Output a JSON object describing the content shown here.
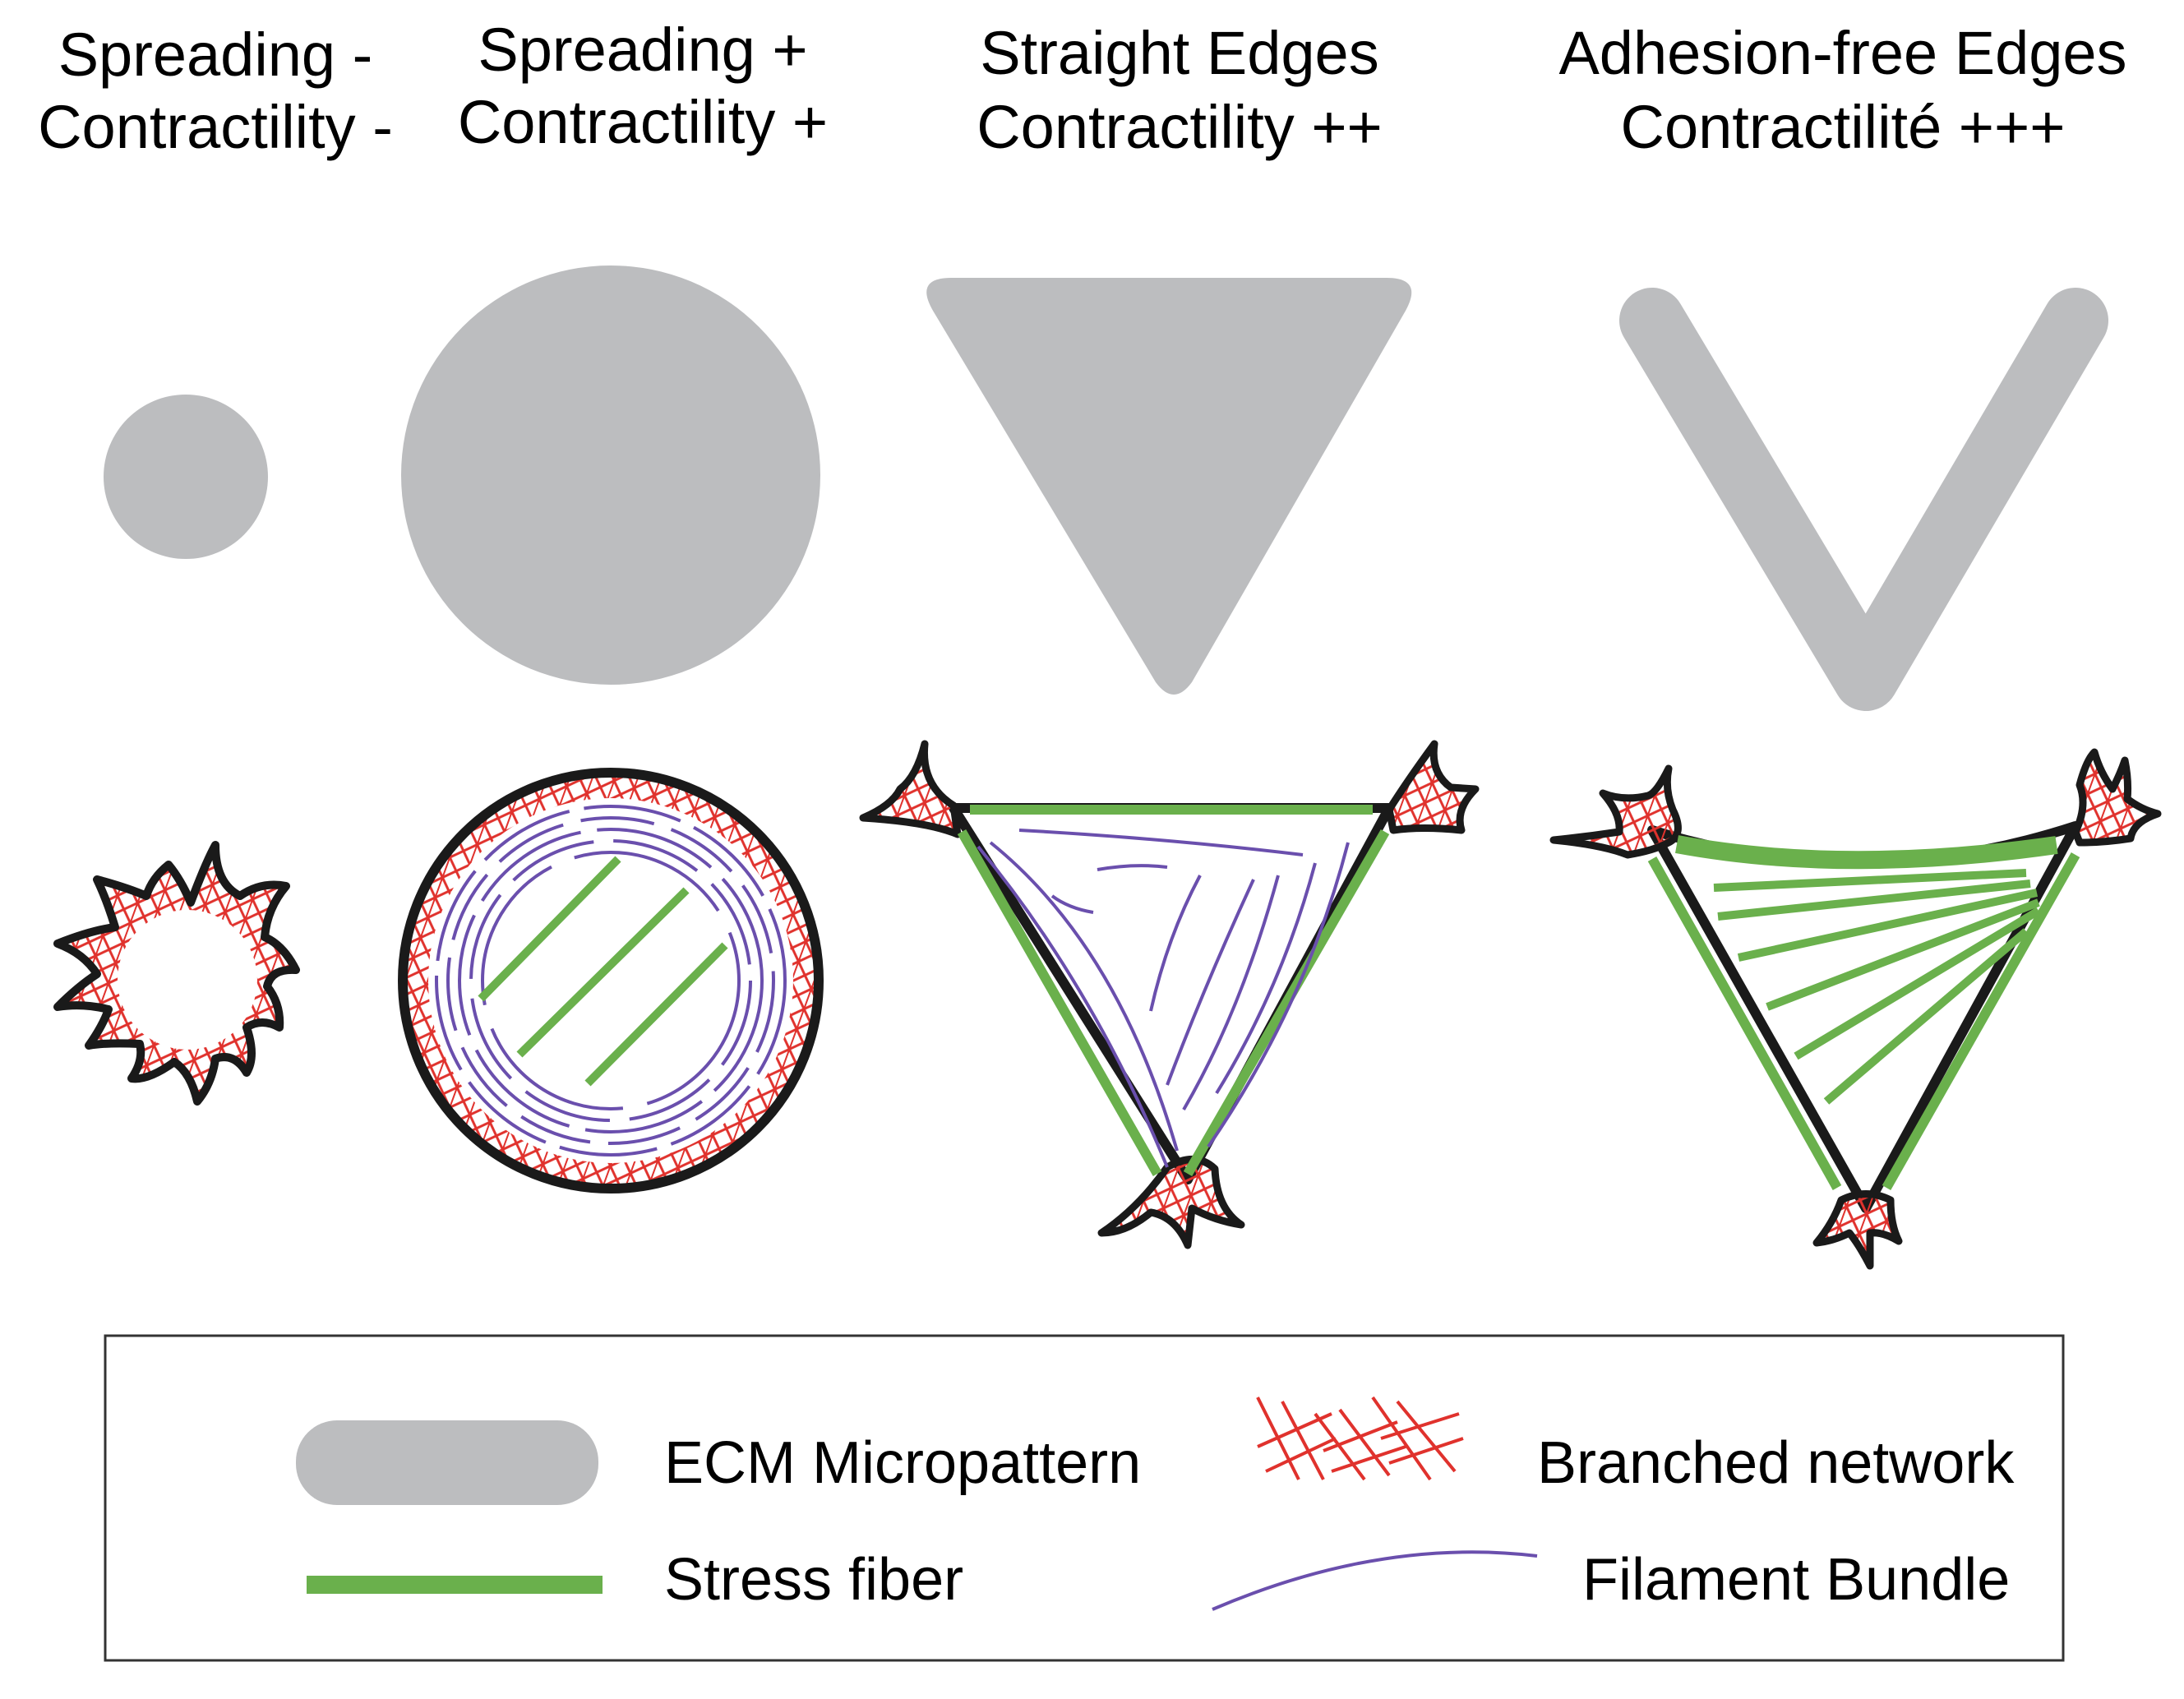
{
  "columns": [
    {
      "line1": "Spreading -",
      "line2": "Contractility -"
    },
    {
      "line1": "Spreading +",
      "line2": "Contractility +"
    },
    {
      "line1": "Straight Edges",
      "line2": "Contractility ++"
    },
    {
      "line1": "Adhesion-free Edges",
      "line2": "Contractilité +++"
    }
  ],
  "legend": {
    "ecm": "ECM Micropattern",
    "stress": "Stress fiber",
    "branched": "Branched network",
    "filament": "Filament Bundle"
  },
  "colors": {
    "ecm": "#bcbdbf",
    "stress_fiber": "#6ab04c",
    "branched_network": "#e0322d",
    "filament_bundle": "#6a4fad",
    "cell_outline": "#1a1a1a"
  }
}
